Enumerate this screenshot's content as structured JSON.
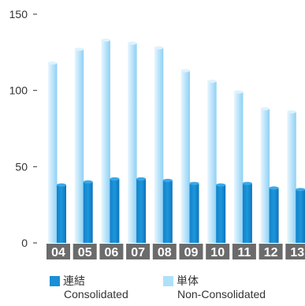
{
  "chart_data": {
    "type": "bar",
    "categories": [
      "04",
      "05",
      "06",
      "07",
      "08",
      "09",
      "10",
      "11",
      "12",
      "13"
    ],
    "series": [
      {
        "name": "連結 Consolidated",
        "values": [
          38,
          40,
          42,
          42,
          41,
          39,
          38,
          39,
          36,
          35
        ],
        "color": "#1a8fd6"
      },
      {
        "name": "単体 Non-Consolidated",
        "values": [
          118,
          127,
          133,
          131,
          128,
          113,
          106,
          99,
          88,
          86
        ],
        "color": "#aee0fa"
      }
    ],
    "yticks": [
      "0",
      "50",
      "100",
      "150"
    ],
    "ylim": [
      0,
      150
    ],
    "xlabel": "",
    "ylabel": "",
    "title": ""
  },
  "legend": {
    "consolidated": {
      "jp": "連結",
      "en": "Consolidated"
    },
    "non_consolidated": {
      "jp": "単体",
      "en": "Non-Consolidated"
    }
  }
}
